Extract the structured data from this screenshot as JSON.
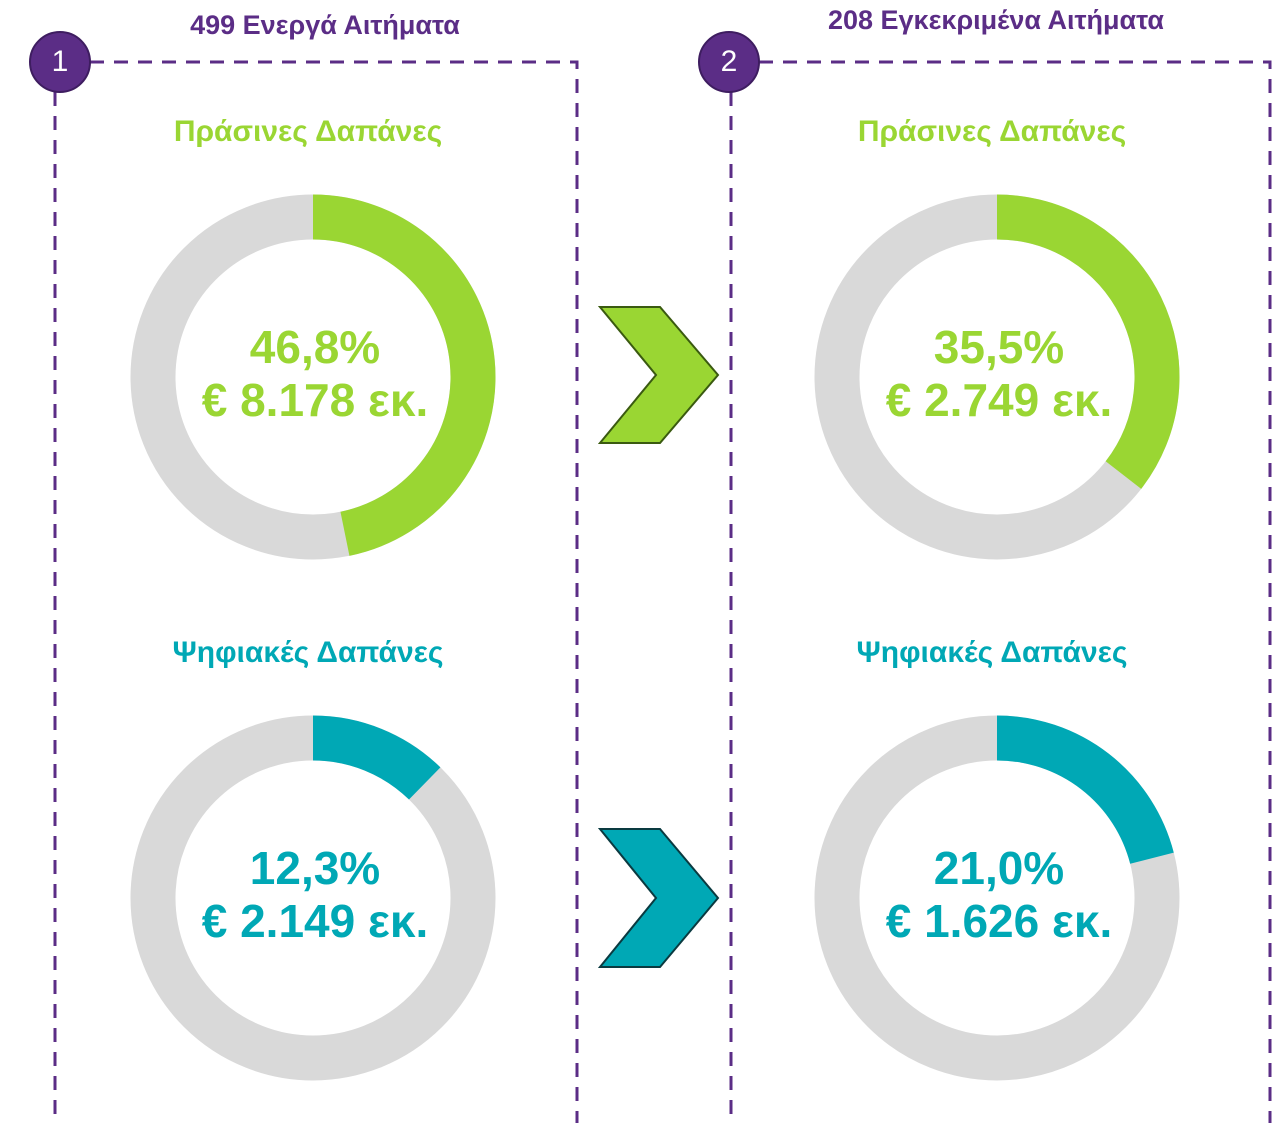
{
  "panels": [
    {
      "badge": "1",
      "title": "499 Ενεργά Αιτήματα"
    },
    {
      "badge": "2",
      "title": "208 Εγκεκριμένα Αιτήματα"
    }
  ],
  "chart_data": [
    {
      "type": "donut",
      "title": "Πράσινες Δαπάνες",
      "values": [
        46.8
      ],
      "value_labels": [
        "46,8%"
      ],
      "amount": "€ 8.178 εκ.",
      "color": "#9ad633",
      "track_color": "#d9d9d9"
    },
    {
      "type": "donut",
      "title": "Πράσινες Δαπάνες",
      "values": [
        35.5
      ],
      "value_labels": [
        "35,5%"
      ],
      "amount": "€ 2.749 εκ.",
      "color": "#9ad633",
      "track_color": "#d9d9d9"
    },
    {
      "type": "donut",
      "title": "Ψηφιακές Δαπάνες",
      "values": [
        12.3
      ],
      "value_labels": [
        "12,3%"
      ],
      "amount": "€ 2.149 εκ.",
      "color": "#00a8b5",
      "track_color": "#d9d9d9"
    },
    {
      "type": "donut",
      "title": "Ψηφιακές Δαπάνες",
      "values": [
        21.0
      ],
      "value_labels": [
        "21,0%"
      ],
      "amount": "€ 1.626 εκ.",
      "color": "#00a8b5",
      "track_color": "#d9d9d9"
    }
  ]
}
